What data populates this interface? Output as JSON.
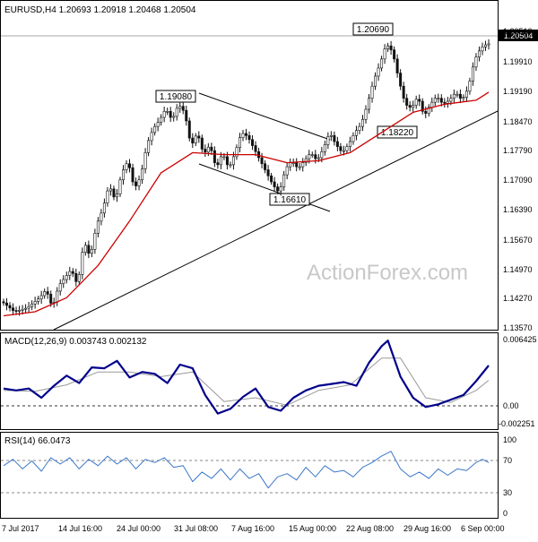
{
  "chart_data": [
    {
      "type": "candlestick",
      "title": "EURUSD,H4  1.20693 1.20918 1.20468 1.20504",
      "ylim": [
        1.1345,
        1.215
      ],
      "y_ticks": [
        "1.20510",
        "1.19910",
        "1.19190",
        "1.18470",
        "1.17790",
        "1.17090",
        "1.16390",
        "1.15670",
        "1.14970",
        "1.14270",
        "1.13570"
      ],
      "last_price_label": "1.20504",
      "x_ticks": [
        "7 Jul 2017",
        "14 Jul 16:00",
        "24 Jul 00:00",
        "31 Jul 08:00",
        "7 Aug 16:00",
        "15 Aug 00:00",
        "22 Aug 08:00",
        "29 Aug 16:00",
        "6 Sep 00:00"
      ],
      "price_path": [
        [
          0,
          1.141
        ],
        [
          4,
          1.1385
        ],
        [
          8,
          1.1395
        ],
        [
          12,
          1.142
        ],
        [
          14,
          1.144
        ],
        [
          16,
          1.1395
        ],
        [
          18,
          1.145
        ],
        [
          20,
          1.147
        ],
        [
          22,
          1.149
        ],
        [
          24,
          1.145
        ],
        [
          26,
          1.156
        ],
        [
          28,
          1.152
        ],
        [
          30,
          1.16
        ],
        [
          32,
          1.164
        ],
        [
          34,
          1.17
        ],
        [
          36,
          1.166
        ],
        [
          38,
          1.173
        ],
        [
          40,
          1.176
        ],
        [
          42,
          1.169
        ],
        [
          44,
          1.172
        ],
        [
          46,
          1.18
        ],
        [
          48,
          1.184
        ],
        [
          50,
          1.186
        ],
        [
          52,
          1.189
        ],
        [
          54,
          1.186
        ],
        [
          56,
          1.19
        ],
        [
          58,
          1.188
        ],
        [
          60,
          1.1795
        ],
        [
          62,
          1.183
        ],
        [
          64,
          1.1775
        ],
        [
          66,
          1.18
        ],
        [
          68,
          1.174
        ],
        [
          70,
          1.178
        ],
        [
          72,
          1.174
        ],
        [
          74,
          1.178
        ],
        [
          76,
          1.183
        ],
        [
          78,
          1.182
        ],
        [
          80,
          1.179
        ],
        [
          82,
          1.176
        ],
        [
          84,
          1.173
        ],
        [
          86,
          1.17
        ],
        [
          88,
          1.168
        ],
        [
          90,
          1.174
        ],
        [
          92,
          1.176
        ],
        [
          94,
          1.174
        ],
        [
          96,
          1.176
        ],
        [
          98,
          1.178
        ],
        [
          100,
          1.176
        ],
        [
          102,
          1.179
        ],
        [
          104,
          1.183
        ],
        [
          106,
          1.18
        ],
        [
          108,
          1.178
        ],
        [
          110,
          1.18
        ],
        [
          112,
          1.183
        ],
        [
          114,
          1.185
        ],
        [
          116,
          1.19
        ],
        [
          118,
          1.196
        ],
        [
          120,
          1.2
        ],
        [
          122,
          1.205
        ],
        [
          124,
          1.203
        ],
        [
          126,
          1.196
        ],
        [
          128,
          1.19
        ],
        [
          130,
          1.189
        ],
        [
          132,
          1.192
        ],
        [
          134,
          1.187
        ],
        [
          136,
          1.19
        ],
        [
          138,
          1.192
        ],
        [
          140,
          1.19
        ],
        [
          142,
          1.191
        ],
        [
          144,
          1.193
        ],
        [
          146,
          1.191
        ],
        [
          148,
          1.194
        ],
        [
          150,
          1.201
        ],
        [
          152,
          1.204
        ],
        [
          154,
          1.205
        ]
      ],
      "moving_average": [
        [
          0,
          1.1375
        ],
        [
          10,
          1.1385
        ],
        [
          20,
          1.142
        ],
        [
          30,
          1.15
        ],
        [
          40,
          1.161
        ],
        [
          50,
          1.173
        ],
        [
          60,
          1.178
        ],
        [
          70,
          1.1775
        ],
        [
          80,
          1.1775
        ],
        [
          90,
          1.1755
        ],
        [
          100,
          1.176
        ],
        [
          110,
          1.178
        ],
        [
          120,
          1.183
        ],
        [
          130,
          1.188
        ],
        [
          140,
          1.19
        ],
        [
          150,
          1.191
        ],
        [
          154,
          1.193
        ]
      ],
      "annotations": [
        "1.19080",
        "1.16610",
        "1.18220",
        "1.20690"
      ],
      "series_colors": {
        "candles": "#111111",
        "moving_average": "#cc0000",
        "trendlines": "#000000"
      }
    },
    {
      "type": "line",
      "title": "MACD(12,26,9) 0.003743 0.002132",
      "ylim": [
        -0.003,
        0.007
      ],
      "y_ticks": [
        "0.006425",
        "0.00",
        "-0.002251"
      ],
      "macd": [
        [
          0,
          0.0012
        ],
        [
          4,
          0.001
        ],
        [
          8,
          0.0012
        ],
        [
          12,
          0.0002
        ],
        [
          16,
          0.0015
        ],
        [
          20,
          0.0026
        ],
        [
          24,
          0.0018
        ],
        [
          28,
          0.0035
        ],
        [
          32,
          0.0034
        ],
        [
          36,
          0.0042
        ],
        [
          40,
          0.0024
        ],
        [
          44,
          0.003
        ],
        [
          48,
          0.0028
        ],
        [
          52,
          0.0018
        ],
        [
          56,
          0.0038
        ],
        [
          60,
          0.0034
        ],
        [
          64,
          0.0005
        ],
        [
          68,
          -0.0015
        ],
        [
          72,
          -0.001
        ],
        [
          76,
          0.0003
        ],
        [
          80,
          0.0012
        ],
        [
          84,
          -0.0008
        ],
        [
          88,
          -0.0012
        ],
        [
          92,
          0.0002
        ],
        [
          96,
          0.001
        ],
        [
          100,
          0.0015
        ],
        [
          104,
          0.0017
        ],
        [
          108,
          0.0019
        ],
        [
          112,
          0.0015
        ],
        [
          116,
          0.004
        ],
        [
          120,
          0.0058
        ],
        [
          122,
          0.0064
        ],
        [
          126,
          0.0025
        ],
        [
          130,
          0.0002
        ],
        [
          134,
          -0.0008
        ],
        [
          138,
          -0.0005
        ],
        [
          142,
          0.0
        ],
        [
          146,
          0.0005
        ],
        [
          150,
          0.002
        ],
        [
          154,
          0.0037
        ]
      ],
      "signal": [
        [
          0,
          0.001
        ],
        [
          10,
          0.0009
        ],
        [
          20,
          0.0016
        ],
        [
          30,
          0.003
        ],
        [
          40,
          0.003
        ],
        [
          50,
          0.0025
        ],
        [
          60,
          0.003
        ],
        [
          70,
          -0.0002
        ],
        [
          80,
          0.0002
        ],
        [
          90,
          -0.0006
        ],
        [
          100,
          0.001
        ],
        [
          110,
          0.0016
        ],
        [
          120,
          0.0045
        ],
        [
          126,
          0.0045
        ],
        [
          134,
          0.0002
        ],
        [
          142,
          -0.0003
        ],
        [
          150,
          0.001
        ],
        [
          154,
          0.0021
        ]
      ],
      "series_colors": {
        "macd": "#00008b",
        "signal": "#999999",
        "zero_line": "#333333"
      }
    },
    {
      "type": "line",
      "title": "RSI(14) 66.0473",
      "ylim": [
        0,
        100
      ],
      "y_ticks": [
        "100",
        "70",
        "30",
        "0"
      ],
      "rsi": [
        [
          0,
          62
        ],
        [
          3,
          70
        ],
        [
          6,
          58
        ],
        [
          9,
          68
        ],
        [
          12,
          55
        ],
        [
          15,
          72
        ],
        [
          18,
          64
        ],
        [
          21,
          72
        ],
        [
          24,
          58
        ],
        [
          27,
          70
        ],
        [
          30,
          62
        ],
        [
          33,
          74
        ],
        [
          36,
          64
        ],
        [
          39,
          72
        ],
        [
          42,
          58
        ],
        [
          45,
          70
        ],
        [
          48,
          66
        ],
        [
          51,
          72
        ],
        [
          54,
          60
        ],
        [
          57,
          62
        ],
        [
          60,
          42
        ],
        [
          63,
          54
        ],
        [
          66,
          46
        ],
        [
          69,
          58
        ],
        [
          72,
          44
        ],
        [
          75,
          58
        ],
        [
          78,
          46
        ],
        [
          81,
          52
        ],
        [
          84,
          34
        ],
        [
          87,
          48
        ],
        [
          90,
          52
        ],
        [
          93,
          44
        ],
        [
          96,
          60
        ],
        [
          99,
          48
        ],
        [
          102,
          62
        ],
        [
          105,
          54
        ],
        [
          108,
          56
        ],
        [
          111,
          48
        ],
        [
          114,
          60
        ],
        [
          117,
          66
        ],
        [
          120,
          74
        ],
        [
          123,
          80
        ],
        [
          126,
          58
        ],
        [
          129,
          48
        ],
        [
          132,
          54
        ],
        [
          135,
          46
        ],
        [
          138,
          58
        ],
        [
          141,
          50
        ],
        [
          144,
          58
        ],
        [
          147,
          56
        ],
        [
          150,
          66
        ],
        [
          152,
          70
        ],
        [
          154,
          66
        ]
      ],
      "series_colors": {
        "rsi": "#3a78c9",
        "levels": "#888888"
      }
    }
  ],
  "watermark": "ActionForex.com"
}
